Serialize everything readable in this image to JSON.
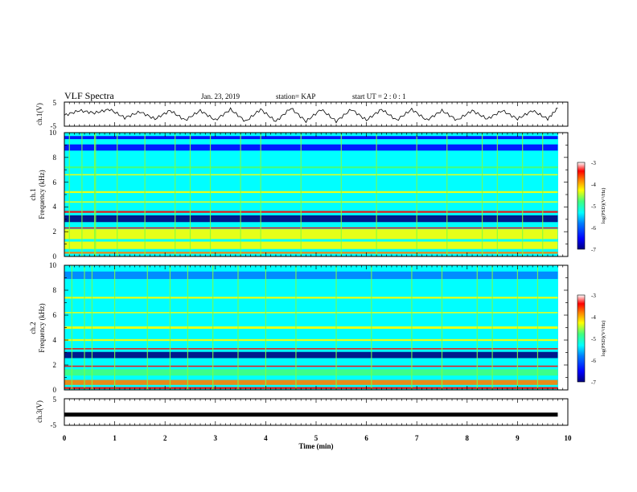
{
  "header": {
    "title": "VLF Spectra",
    "date": "Jan. 23, 2019",
    "station": "station= KAP",
    "start": "start UT =  2 : 0 : 1"
  },
  "colors": {
    "background": "#ffffff",
    "axes": "#000000",
    "colormap": [
      "#00007f",
      "#0000ff",
      "#0080ff",
      "#00ffff",
      "#40ff80",
      "#ffff00",
      "#ff8000",
      "#ff0000",
      "#ffffff"
    ]
  },
  "chart_data": [
    {
      "id": "ch1-waveform",
      "type": "line",
      "ylabel": "ch.1(V)",
      "ylim": [
        -5,
        5
      ],
      "yticks": [
        "5",
        "-5"
      ],
      "xlim": [
        0,
        10
      ],
      "description_values": "oscillating waveform approximately between -3 and +3 V with ~30 s period over ~9.8 min",
      "series": [
        {
          "x": [
            0,
            0.3,
            0.6,
            0.9,
            1.2,
            1.5,
            1.8,
            2.1,
            2.4,
            2.7,
            3.0,
            3.3,
            3.6,
            3.9,
            4.2,
            4.5,
            4.8,
            5.1,
            5.4,
            5.7,
            6.0,
            6.3,
            6.6,
            6.9,
            7.2,
            7.5,
            7.8,
            8.1,
            8.4,
            8.7,
            9.0,
            9.3,
            9.6,
            9.8
          ],
          "values": [
            -0.5,
            1.5,
            0.5,
            2.0,
            -1.5,
            1.0,
            -2.0,
            1.5,
            -2.5,
            1.5,
            -2.5,
            2.0,
            -3.0,
            2.0,
            -3.0,
            2.5,
            -3.0,
            2.0,
            -3.0,
            2.0,
            -2.5,
            2.0,
            -2.5,
            2.0,
            -2.5,
            1.5,
            -2.5,
            1.5,
            -2.0,
            1.5,
            -2.0,
            1.5,
            -2.0,
            2.5
          ]
        }
      ]
    },
    {
      "id": "ch1-spectrogram",
      "type": "heatmap",
      "ylabel": "ch.1\nFrequency (kHz)",
      "ylim": [
        0,
        10
      ],
      "yticks": [
        "0",
        "2",
        "4",
        "6",
        "8",
        "10"
      ],
      "xlim": [
        0,
        10
      ],
      "colorbar": {
        "label": "log(PSD)(V²/Hz)",
        "range": [
          -7,
          -3
        ],
        "ticks": [
          "-3",
          "-4",
          "-5",
          "-6",
          "-7"
        ]
      },
      "background_level": -5.6,
      "bands": [
        {
          "f": 9.6,
          "width": 0.25,
          "level": -6.6
        },
        {
          "f": 8.8,
          "width": 0.5,
          "level": -6.3
        },
        {
          "f": 7.2,
          "width": 0.15,
          "level": -4.8
        },
        {
          "f": 6.6,
          "width": 0.1,
          "level": -4.4
        },
        {
          "f": 5.2,
          "width": 0.15,
          "level": -4.4
        },
        {
          "f": 4.4,
          "width": 0.1,
          "level": -4.6
        },
        {
          "f": 3.6,
          "width": 0.15,
          "level": -3.5
        },
        {
          "f": 3.05,
          "width": 0.55,
          "level": -6.8
        },
        {
          "f": 2.3,
          "width": 0.1,
          "level": -3.4
        },
        {
          "f": 1.8,
          "width": 0.8,
          "level": -4.3
        },
        {
          "f": 0.9,
          "width": 0.6,
          "level": -4.6
        },
        {
          "f": 0.3,
          "width": 0.15,
          "level": -3.8
        }
      ],
      "spike_times_min": [
        0.1,
        0.35,
        0.6,
        0.62,
        1.05,
        1.6,
        2.2,
        2.5,
        2.9,
        3.5,
        3.9,
        4.7,
        5.5,
        6.2,
        7.0,
        7.6,
        8.3,
        8.6,
        9.1,
        9.5
      ]
    },
    {
      "id": "ch2-spectrogram",
      "type": "heatmap",
      "ylabel": "ch.2\nFrequency (kHz)",
      "ylim": [
        0,
        10
      ],
      "yticks": [
        "0",
        "2",
        "4",
        "6",
        "8",
        "10"
      ],
      "xlim": [
        0,
        10
      ],
      "colorbar": {
        "label": "log(PSD)(V²/Hz)",
        "range": [
          -7,
          -3
        ],
        "ticks": [
          "-3",
          "-4",
          "-5",
          "-6",
          "-7"
        ]
      },
      "background_level": -5.4,
      "bands": [
        {
          "f": 9.2,
          "width": 0.6,
          "level": -6.0
        },
        {
          "f": 7.4,
          "width": 0.15,
          "level": -4.4
        },
        {
          "f": 6.2,
          "width": 0.1,
          "level": -4.5
        },
        {
          "f": 5.0,
          "width": 0.2,
          "level": -4.3
        },
        {
          "f": 4.0,
          "width": 0.15,
          "level": -4.5
        },
        {
          "f": 3.3,
          "width": 0.1,
          "level": -3.5
        },
        {
          "f": 2.8,
          "width": 0.5,
          "level": -6.8
        },
        {
          "f": 1.9,
          "width": 0.1,
          "level": -3.6
        },
        {
          "f": 1.4,
          "width": 0.5,
          "level": -4.9
        },
        {
          "f": 0.6,
          "width": 0.4,
          "level": -4.2
        },
        {
          "f": 0.15,
          "width": 0.15,
          "level": -3.6
        }
      ],
      "spike_times_min": [
        0.15,
        0.4,
        0.55,
        1.0,
        1.65,
        2.1,
        2.45,
        2.95,
        3.45,
        4.0,
        4.6,
        5.4,
        6.1,
        6.9,
        7.5,
        8.2,
        8.5,
        9.0,
        9.4
      ]
    },
    {
      "id": "ch3-waveform",
      "type": "line",
      "ylabel": "ch.3(V)",
      "ylim": [
        -5,
        5
      ],
      "yticks": [
        "5",
        "-5"
      ],
      "xlim": [
        0,
        10
      ],
      "xlabel": "Time (min)",
      "xticks": [
        "0",
        "1",
        "2",
        "3",
        "4",
        "5",
        "6",
        "7",
        "8",
        "9",
        "10"
      ],
      "series": [
        {
          "x": [
            0,
            9.8
          ],
          "values": [
            -1,
            -1
          ]
        }
      ]
    }
  ]
}
